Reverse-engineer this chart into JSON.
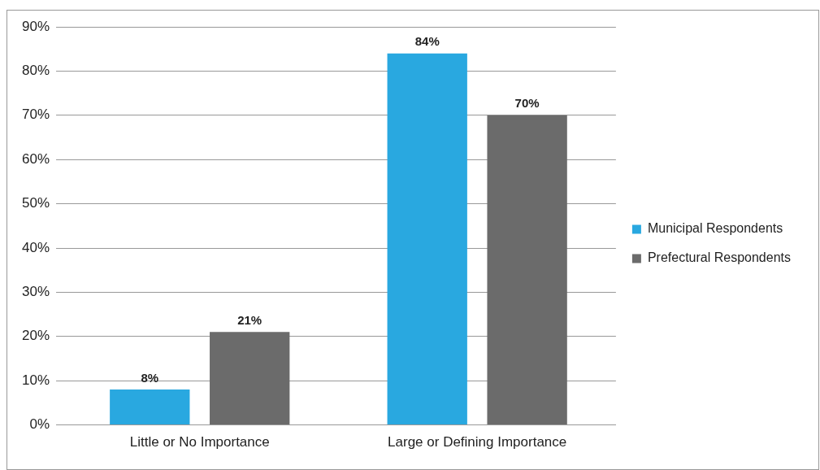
{
  "chart_data": {
    "type": "bar",
    "categories": [
      "Little or No Importance",
      "Large or Defining Importance"
    ],
    "series": [
      {
        "name": "Municipal Respondents",
        "color": "#29a8e0",
        "values": [
          8,
          84
        ],
        "value_labels": [
          "8%",
          "84%"
        ]
      },
      {
        "name": "Prefectural Respondents",
        "color": "#6b6b6b",
        "values": [
          21,
          70
        ],
        "value_labels": [
          "21%",
          "70%"
        ]
      }
    ],
    "ylim": [
      0,
      90
    ],
    "yticks": [
      {
        "value": 0,
        "label": "0%"
      },
      {
        "value": 10,
        "label": "10%"
      },
      {
        "value": 20,
        "label": "20%"
      },
      {
        "value": 30,
        "label": "30%"
      },
      {
        "value": 40,
        "label": "40%"
      },
      {
        "value": 50,
        "label": "50%"
      },
      {
        "value": 60,
        "label": "60%"
      },
      {
        "value": 70,
        "label": "70%"
      },
      {
        "value": 80,
        "label": "80%"
      },
      {
        "value": 90,
        "label": "90%"
      }
    ],
    "grid": "y",
    "legend": "right"
  }
}
